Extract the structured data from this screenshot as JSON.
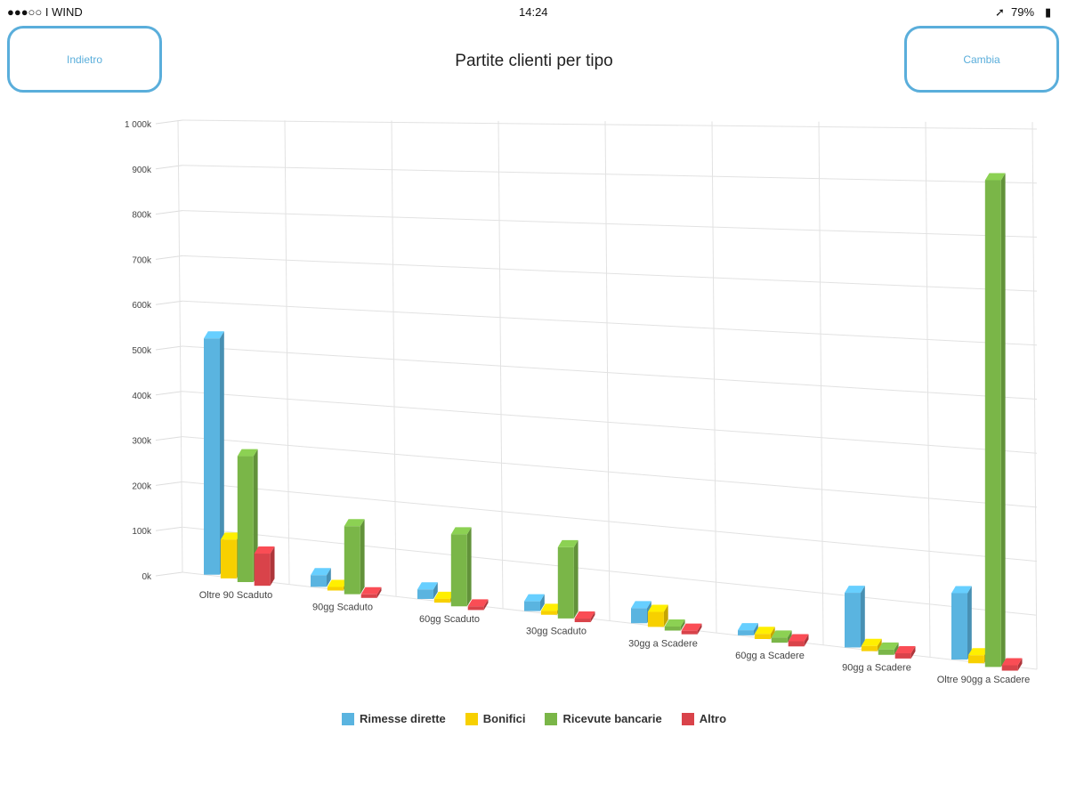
{
  "status_bar": {
    "carrier": "●●●○○ I WIND",
    "time": "14:24",
    "battery": "79%"
  },
  "header": {
    "back_label": "Indietro",
    "title": "Partite clienti per tipo",
    "change_label": "Cambia"
  },
  "chart_data": {
    "type": "bar",
    "style": "3d-column",
    "categories": [
      "Oltre 90 Scaduto",
      "90gg Scaduto",
      "60gg Scaduto",
      "30gg Scaduto",
      "30gg a Scadere",
      "60gg a Scadere",
      "90gg a Scadere",
      "Oltre 90gg a Scadere"
    ],
    "y_ticks": [
      "0k",
      "100k",
      "200k",
      "300k",
      "400k",
      "500k",
      "600k",
      "700k",
      "800k",
      "900k",
      "1 000k"
    ],
    "ylim": [
      0,
      1000000
    ],
    "grid": true,
    "legend_position": "bottom",
    "series": [
      {
        "name": "Rimesse dirette",
        "color": "#5ab4e0",
        "values": [
          520000,
          25000,
          20000,
          20000,
          30000,
          10000,
          105000,
          125000
        ]
      },
      {
        "name": "Bonifici",
        "color": "#f7d000",
        "values": [
          85000,
          5000,
          8000,
          8000,
          30000,
          10000,
          10000,
          15000
        ]
      },
      {
        "name": "Ricevute bancarie",
        "color": "#7ab648",
        "values": [
          275000,
          145000,
          150000,
          145000,
          8000,
          10000,
          10000,
          910000
        ]
      },
      {
        "name": "Altro",
        "color": "#d9434a",
        "values": [
          70000,
          5000,
          5000,
          5000,
          5000,
          10000,
          10000,
          10000
        ]
      }
    ]
  }
}
